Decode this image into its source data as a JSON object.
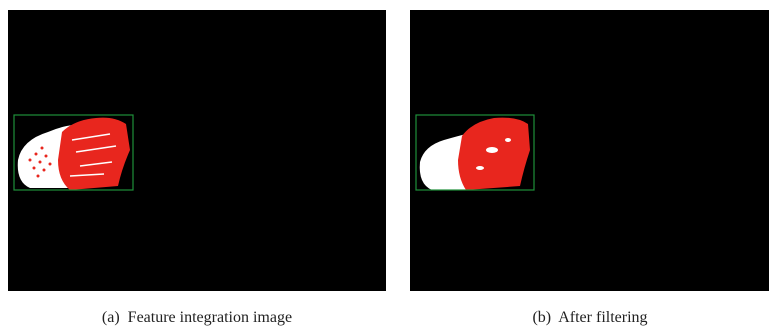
{
  "figure": {
    "panels": [
      {
        "caption": "(a)  Feature integration image"
      },
      {
        "caption": "(b)  After filtering"
      }
    ]
  }
}
